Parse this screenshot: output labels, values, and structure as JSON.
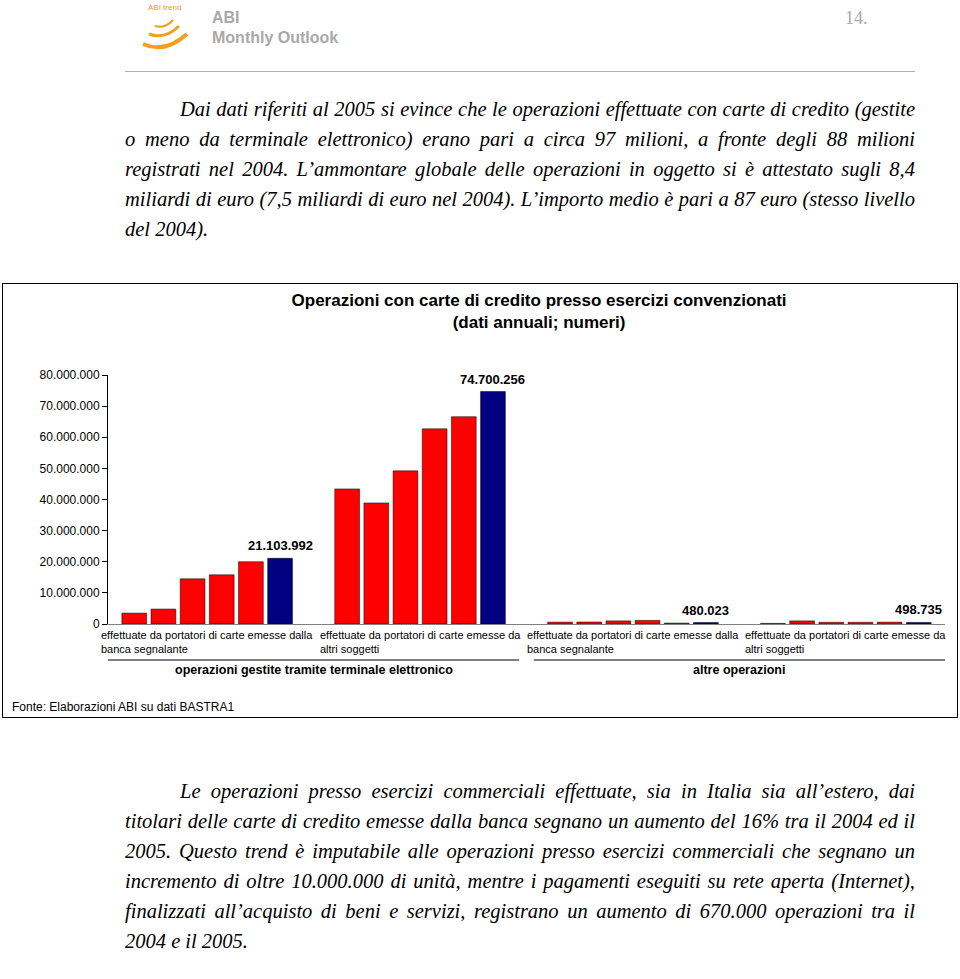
{
  "header": {
    "logo": "ABI trend",
    "title": "ABI",
    "subtitle": "Monthly Outlook",
    "page": "14."
  },
  "paragraphs_top": [
    "Dai dati riferiti al 2005 si evince che le operazioni effettuate con carte di credito (gestite o meno da terminale elettronico) erano pari a circa 97 milioni, a fronte degli 88 milioni registrati nel 2004. L’ammontare globale delle operazioni in oggetto si è attestato sugli 8,4 miliardi di euro (7,5 miliardi di euro nel 2004). L’importo medio è pari a 87 euro (stesso livello del 2004)."
  ],
  "chart_data": {
    "type": "bar",
    "title": "Operazioni con carte di credito presso esercizi convenzionati",
    "subtitle": "(dati annuali; numeri)",
    "ylim": [
      0,
      80000000
    ],
    "yticks": [
      {
        "value": 0,
        "label": "0"
      },
      {
        "value": 10000000,
        "label": "10.000.000"
      },
      {
        "value": 20000000,
        "label": "20.000.000"
      },
      {
        "value": 30000000,
        "label": "30.000.000"
      },
      {
        "value": 40000000,
        "label": "40.000.000"
      },
      {
        "value": 50000000,
        "label": "50.000.000"
      },
      {
        "value": 60000000,
        "label": "60.000.000"
      },
      {
        "value": 70000000,
        "label": "70.000.000"
      },
      {
        "value": 80000000,
        "label": "80.000.000"
      }
    ],
    "grid": false,
    "tick_labels": "y",
    "data_labels": true,
    "groups": [
      {
        "label": [
          "effettuate da portatori di carte emesse dalla",
          "banca segnalante"
        ],
        "values": [
          3500000,
          4800000,
          14500000,
          15800000,
          20000000,
          21103992
        ],
        "value_labels": [
          null,
          null,
          null,
          null,
          null,
          "21.103.992"
        ],
        "colors": [
          "#ff0000",
          "#ff0000",
          "#ff0000",
          "#ff0000",
          "#ff0000",
          "#000080"
        ]
      },
      {
        "label": [
          "effettuate da portatori di carte emesse da",
          "altri soggetti"
        ],
        "values": [
          43400000,
          38900000,
          49200000,
          62700000,
          66600000,
          74700256
        ],
        "value_labels": [
          null,
          null,
          null,
          null,
          null,
          "74.700.256"
        ],
        "colors": [
          "#ff0000",
          "#ff0000",
          "#ff0000",
          "#ff0000",
          "#ff0000",
          "#000080"
        ]
      },
      {
        "label": [
          "effettuate da portatori di carte emesse dalla",
          "banca segnalante"
        ],
        "values": [
          600000,
          650000,
          1000000,
          1150000,
          300000,
          480023
        ],
        "value_labels": [
          null,
          null,
          null,
          null,
          null,
          "480.023"
        ],
        "colors": [
          "#ff0000",
          "#ff0000",
          "#ff0000",
          "#ff0000",
          "#ff0000",
          "#000080"
        ]
      },
      {
        "label": [
          "effettuate da portatori di carte emesse da",
          "altri soggetti"
        ],
        "values": [
          200000,
          1000000,
          550000,
          550000,
          600000,
          498735
        ],
        "value_labels": [
          null,
          null,
          null,
          null,
          null,
          "498.735"
        ],
        "colors": [
          "#ff0000",
          "#ff0000",
          "#ff0000",
          "#ff0000",
          "#ff0000",
          "#000080"
        ]
      }
    ],
    "supergroups": [
      {
        "label": "operazioni gestite tramite terminale elettronico",
        "groups": [
          0,
          1
        ]
      },
      {
        "label": "altre operazioni",
        "groups": [
          2,
          3
        ]
      }
    ]
  },
  "source": "Fonte: Elaborazioni ABI su dati BASTRA1",
  "paragraphs_bottom": [
    "Le operazioni presso esercizi commerciali effettuate, sia in Italia sia all’estero, dai titolari delle carte di credito emesse dalla banca segnano un aumento del 16% tra il 2004 ed il 2005. Questo trend è imputabile alle operazioni presso esercizi commerciali che segnano un incremento di oltre 10.000.000 di unità, mentre i pagamenti eseguiti su rete aperta (Internet), finalizzati all’acquisto di beni e servizi, registrano un aumento di 670.000 operazioni tra il 2004 e il 2005."
  ]
}
